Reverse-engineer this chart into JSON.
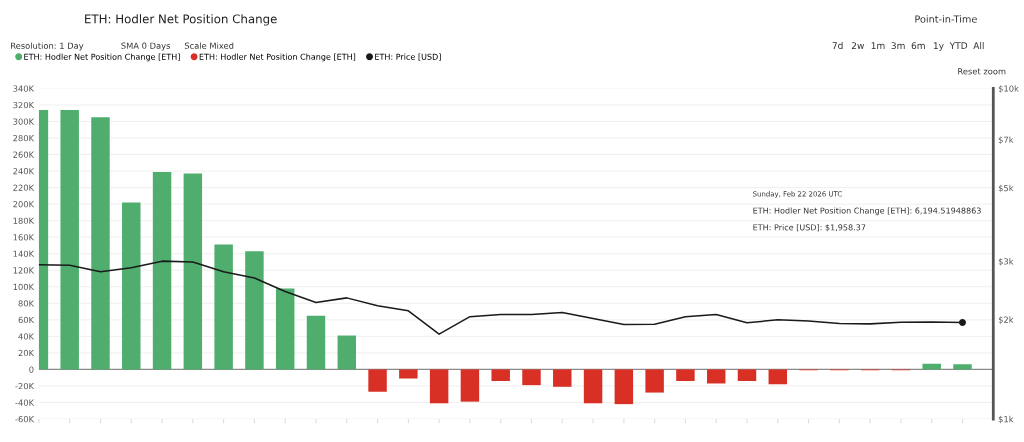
{
  "chart_data": {
    "type": "bar",
    "title": "ETH: Hodler Net Position Change",
    "categories": [
      null,
      null,
      null,
      null,
      null,
      null,
      null,
      null,
      null,
      null,
      null,
      null,
      null,
      null,
      null,
      null,
      null,
      null,
      null,
      null,
      null,
      null,
      null,
      null,
      null,
      null,
      null,
      null,
      null,
      null,
      null
    ],
    "series": [
      {
        "name": "ETH: Hodler Net Position Change [ETH]",
        "color": "#4fae6e",
        "values": [
          314000,
          314000,
          305000,
          202000,
          239000,
          237000,
          151000,
          143000,
          98000,
          65000,
          41000,
          null,
          null,
          null,
          null,
          null,
          null,
          null,
          null,
          null,
          null,
          null,
          null,
          null,
          null,
          null,
          null,
          null,
          null,
          7000,
          6194.51948863
        ]
      },
      {
        "name": "ETH: Hodler Net Position Change [ETH]",
        "color": "#d93025",
        "values": [
          null,
          null,
          null,
          null,
          null,
          null,
          null,
          null,
          null,
          null,
          null,
          -27000,
          -11000,
          -41000,
          -39000,
          -14000,
          -19000,
          -21000,
          -41000,
          -42000,
          -28000,
          -14000,
          -17000,
          -14000,
          -18000,
          -1000,
          -1000,
          -1000,
          -1000,
          null,
          null
        ]
      },
      {
        "name": "ETH: Price [USD]",
        "type": "line",
        "axis": "y2",
        "color": "#1a1a1a",
        "values": [
          2927,
          2920,
          2788,
          2870,
          3003,
          2983,
          2790,
          2670,
          2430,
          2250,
          2325,
          2200,
          2125,
          1806,
          2040,
          2072,
          2072,
          2100,
          2013,
          1930,
          1935,
          2040,
          2072,
          1955,
          1995,
          1980,
          1944,
          1940,
          1962,
          1965,
          1958.37
        ]
      }
    ],
    "ylim": [
      -60000,
      340000
    ],
    "yticks": [
      {
        "value": -60000,
        "label": "-60K"
      },
      {
        "value": -40000,
        "label": "-40K"
      },
      {
        "value": -20000,
        "label": "-20K"
      },
      {
        "value": 0,
        "label": "0"
      },
      {
        "value": 20000,
        "label": "20K"
      },
      {
        "value": 40000,
        "label": "40K"
      },
      {
        "value": 60000,
        "label": "60K"
      },
      {
        "value": 80000,
        "label": "80K"
      },
      {
        "value": 100000,
        "label": "100K"
      },
      {
        "value": 120000,
        "label": "120K"
      },
      {
        "value": 140000,
        "label": "140K"
      },
      {
        "value": 160000,
        "label": "160K"
      },
      {
        "value": 180000,
        "label": "180K"
      },
      {
        "value": 200000,
        "label": "200K"
      },
      {
        "value": 220000,
        "label": "220K"
      },
      {
        "value": 240000,
        "label": "240K"
      },
      {
        "value": 260000,
        "label": "260K"
      },
      {
        "value": 280000,
        "label": "280K"
      },
      {
        "value": 300000,
        "label": "300K"
      },
      {
        "value": 320000,
        "label": "320K"
      },
      {
        "value": 340000,
        "label": "340K"
      }
    ],
    "log": "y2",
    "y2lim": [
      1000,
      10000
    ],
    "y2ticks": [
      {
        "value": 1000,
        "label": "$1k"
      },
      {
        "value": 2000,
        "label": "$2k"
      },
      {
        "value": 3000,
        "label": "$3k"
      },
      {
        "value": 5000,
        "label": "$5k"
      },
      {
        "value": 7000,
        "label": "$7k"
      },
      {
        "value": 10000,
        "label": "$10k"
      }
    ],
    "ref_lines": [
      {
        "axis": "y",
        "value": 0,
        "color": "#8a8a8a"
      }
    ],
    "grid": "y",
    "legend": "top left",
    "tick_labels": "y",
    "annotations": [
      "Resolution: 1 Day",
      "SMA 0 Days",
      "Scale Mixed",
      "Point-in-Time",
      "7d",
      "2w",
      "1m",
      "3m",
      "6m",
      "1y",
      "YTD",
      "All",
      "Reset zoom",
      "Sunday, Feb 22 2026 UTC",
      "ETH: Hodler Net Position Change [ETH]: 6,194.51948863",
      "ETH: Price [USD]: $1,958.37"
    ]
  }
}
